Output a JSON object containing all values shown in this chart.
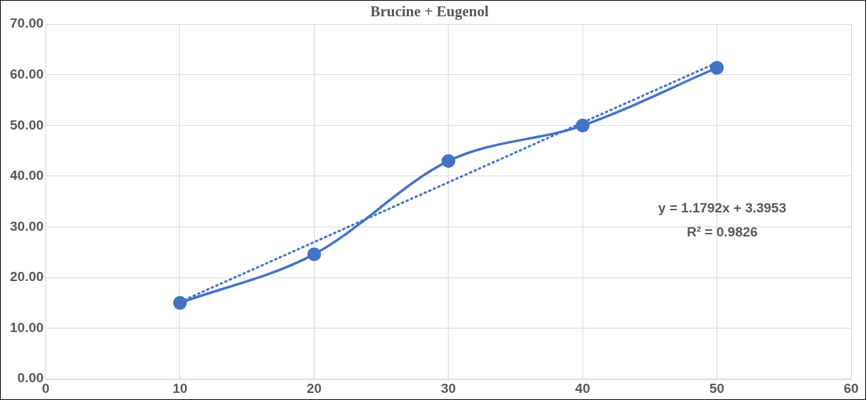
{
  "chart_data": {
    "type": "line",
    "title": "Brucine + Eugenol",
    "x": [
      10,
      20,
      30,
      40,
      50
    ],
    "series": [
      {
        "type": "line",
        "color": "#4472c4",
        "values": [
          15.0,
          24.6,
          43.0,
          50.0,
          61.4
        ],
        "marker": "circle",
        "line_style": "solid"
      },
      {
        "type": "line",
        "color": "#4472c4",
        "x": [
          10,
          50
        ],
        "values": [
          15.2,
          62.4
        ],
        "marker": "none",
        "line_style": "dotted"
      }
    ],
    "xlim": [
      0,
      60
    ],
    "xticks": [
      0,
      10,
      20,
      30,
      40,
      50,
      60
    ],
    "ylim": [
      0,
      70
    ],
    "yticks": [
      {
        "value": 0,
        "label": "0.00"
      },
      {
        "value": 10,
        "label": "10.00"
      },
      {
        "value": 20,
        "label": "20.00"
      },
      {
        "value": 30,
        "label": "30.00"
      },
      {
        "value": 40,
        "label": "40.00"
      },
      {
        "value": 50,
        "label": "50.00"
      },
      {
        "value": 60,
        "label": "60.00"
      },
      {
        "value": 70,
        "label": "70.00"
      }
    ],
    "grid": true,
    "legend": false,
    "annotations": [
      "y = 1.1792x + 3.3953",
      "R² = 0.9826"
    ]
  }
}
